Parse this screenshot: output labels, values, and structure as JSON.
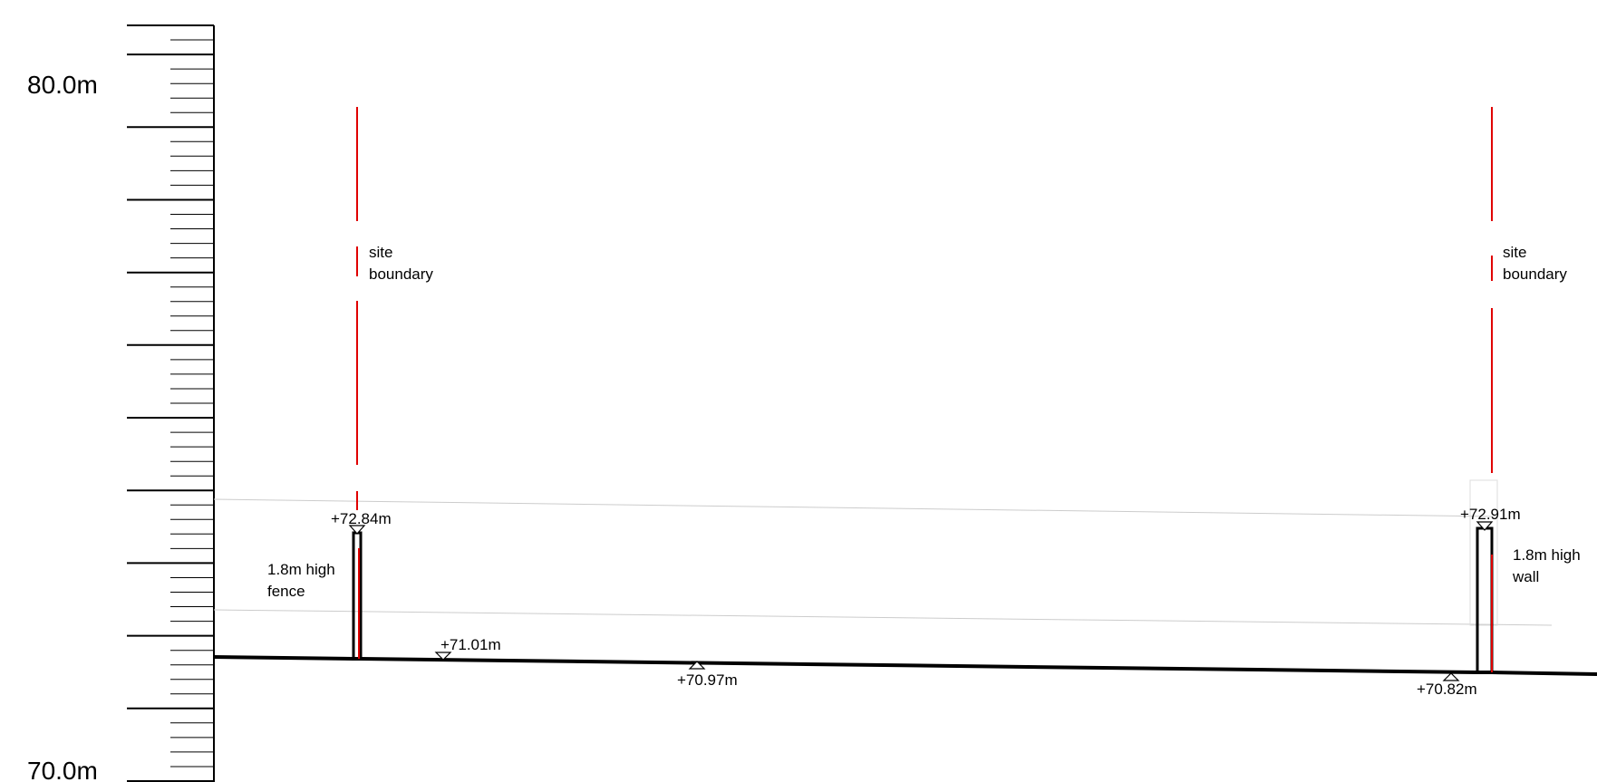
{
  "scale": {
    "top_label": "80.0m",
    "bottom_label": "70.0m",
    "max": 80.0,
    "min": 70.0,
    "major_step": 1.0,
    "minor_step": 0.2
  },
  "boundaries": [
    {
      "line1": "site",
      "line2": "boundary"
    },
    {
      "line1": "site",
      "line2": "boundary"
    }
  ],
  "levels": [
    {
      "text": "+72.84m",
      "value": 72.84,
      "marker": "down"
    },
    {
      "text": "+72.91m",
      "value": 72.91,
      "marker": "down"
    },
    {
      "text": "+71.01m",
      "value": 71.01,
      "marker": "down"
    },
    {
      "text": "+70.97m",
      "value": 70.97,
      "marker": "up"
    },
    {
      "text": "+70.82m",
      "value": 70.82,
      "marker": "up"
    }
  ],
  "notes": {
    "fence_line1": "1.8m high",
    "fence_line2": "fence",
    "wall_line1": "1.8m high",
    "wall_line2": "wall"
  },
  "colors": {
    "boundary": "#e00000",
    "ground": "#000000",
    "guide": "#cccccc"
  }
}
